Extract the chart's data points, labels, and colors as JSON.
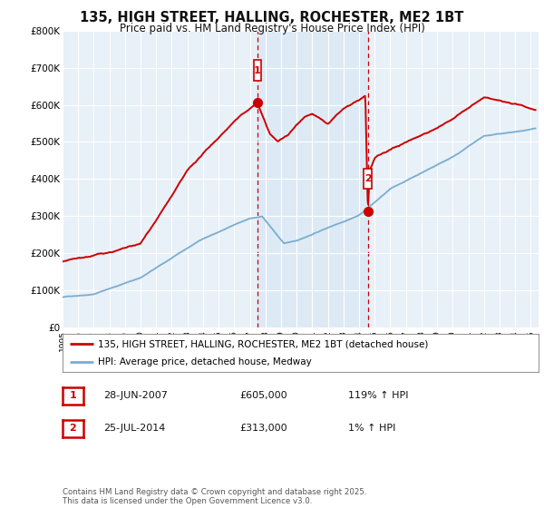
{
  "title_line1": "135, HIGH STREET, HALLING, ROCHESTER, ME2 1BT",
  "title_line2": "Price paid vs. HM Land Registry's House Price Index (HPI)",
  "ylim": [
    0,
    800000
  ],
  "yticks": [
    0,
    100000,
    200000,
    300000,
    400000,
    500000,
    600000,
    700000,
    800000
  ],
  "ytick_labels": [
    "£0",
    "£100K",
    "£200K",
    "£300K",
    "£400K",
    "£500K",
    "£600K",
    "£700K",
    "£800K"
  ],
  "background_color": "#ffffff",
  "plot_bg_color": "#e8f0f8",
  "grid_color": "#ffffff",
  "red_line_color": "#cc0000",
  "blue_line_color": "#7aadcf",
  "shade_color": "#dce9f5",
  "dashed_line_color": "#cc0000",
  "marker1_x": 2007.49,
  "marker1_y": 605000,
  "marker2_x": 2014.56,
  "marker2_y": 313000,
  "marker1_label": "1",
  "marker2_label": "2",
  "legend_red": "135, HIGH STREET, HALLING, ROCHESTER, ME2 1BT (detached house)",
  "legend_blue": "HPI: Average price, detached house, Medway",
  "table_row1": [
    "1",
    "28-JUN-2007",
    "£605,000",
    "119% ↑ HPI"
  ],
  "table_row2": [
    "2",
    "25-JUL-2014",
    "£313,000",
    "1% ↑ HPI"
  ],
  "footnote": "Contains HM Land Registry data © Crown copyright and database right 2025.\nThis data is licensed under the Open Government Licence v3.0.",
  "shade_x_start": 2007.49,
  "shade_x_end": 2014.56,
  "xlim_left": 1995,
  "xlim_right": 2025.5
}
